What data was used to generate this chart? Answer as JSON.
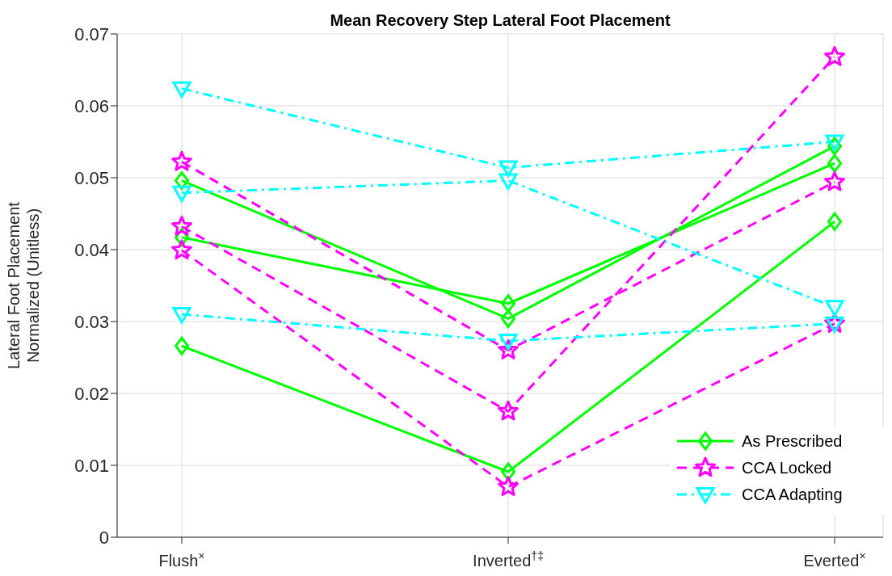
{
  "chart_data": {
    "type": "line",
    "title": "Mean Recovery Step Lateral Foot Placement",
    "ylabel": "Lateral Foot Placement\nNormalized (Unitless)",
    "categories": [
      "Flush$^{×}$",
      "Inverted$^{†‡}$",
      "Everted$^{×}$"
    ],
    "series": [
      {
        "name": "As Prescribed",
        "color": "#00ff00",
        "marker": "diamond",
        "line_style": "solid",
        "values": [
          0.0496,
          0.0304,
          0.0544
        ]
      },
      {
        "color": "#00ff00",
        "marker": "diamond",
        "line_style": "solid",
        "values": [
          0.0417,
          0.0325,
          0.052
        ]
      },
      {
        "color": "#00ff00",
        "marker": "diamond",
        "line_style": "solid",
        "values": [
          0.0266,
          0.0091,
          0.0439
        ]
      },
      {
        "name": "CCA Locked",
        "color": "#ff00ff",
        "marker": "star",
        "line_style": "dashed",
        "values": [
          0.0522,
          0.026,
          0.0494
        ]
      },
      {
        "color": "#ff00ff",
        "marker": "star",
        "line_style": "dashed",
        "values": [
          0.0432,
          0.0175,
          0.0668
        ]
      },
      {
        "color": "#ff00ff",
        "marker": "star",
        "line_style": "dashed",
        "values": [
          0.0399,
          0.007,
          0.0297
        ]
      },
      {
        "name": "CCA Adapting",
        "color": "#00ffff",
        "marker": "triangle",
        "line_style": "dashdot",
        "values": [
          0.0624,
          0.0514,
          0.055
        ]
      },
      {
        "color": "#00ffff",
        "marker": "triangle",
        "line_style": "dashdot",
        "values": [
          0.0479,
          0.0496,
          0.032
        ]
      },
      {
        "color": "#00ffff",
        "marker": "triangle",
        "line_style": "dashdot",
        "values": [
          0.031,
          0.0273,
          0.0297
        ]
      }
    ],
    "ylim": [
      0,
      0.07
    ],
    "yticks": [
      0,
      0.01,
      0.02,
      0.03,
      0.04,
      0.05,
      0.06,
      0.07
    ],
    "grid": true,
    "legend": "bottom right"
  }
}
